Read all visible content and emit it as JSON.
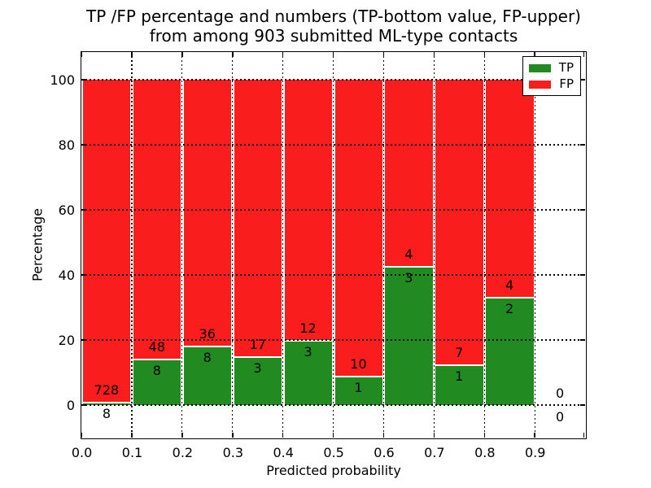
{
  "title": {
    "line1": "TP /FP percentage and numbers (TP-bottom value, FP-upper)",
    "line2": "from among 903 submitted ML-type contacts"
  },
  "axes": {
    "x_label": "Predicted probability",
    "y_label": "Percentage",
    "x_tick_labels": [
      "0.0",
      "0.1",
      "0.2",
      "0.3",
      "0.4",
      "0.5",
      "0.6",
      "0.7",
      "0.8",
      "0.9"
    ],
    "y_tick_labels": [
      "0",
      "20",
      "40",
      "60",
      "80",
      "100"
    ]
  },
  "legend": {
    "items": [
      {
        "label": "TP",
        "color": "#218a21"
      },
      {
        "label": "FP",
        "color": "#fa1d1d"
      }
    ]
  },
  "chart_data": {
    "type": "bar",
    "stacked": true,
    "normalized": "each 0.1-wide bin scaled to 100%, count labels drawn at TP/FP boundary",
    "title": "TP /FP percentage and numbers (TP-bottom value, FP-upper) from among 903 submitted ML-type contacts",
    "xlabel": "Predicted probability",
    "ylabel": "Percentage",
    "xlim": [
      0.0,
      1.0
    ],
    "ylim": [
      0,
      100
    ],
    "grid": "dotted black, both axes",
    "legend_position": "upper right",
    "total_submitted_contacts": 903,
    "bins": [
      "0.0-0.1",
      "0.1-0.2",
      "0.2-0.3",
      "0.3-0.4",
      "0.4-0.5",
      "0.5-0.6",
      "0.6-0.7",
      "0.7-0.8",
      "0.8-0.9",
      "0.9-1.0"
    ],
    "series": [
      {
        "name": "TP",
        "color": "#218a21",
        "values": [
          8,
          8,
          8,
          3,
          3,
          1,
          3,
          1,
          2,
          0
        ]
      },
      {
        "name": "FP",
        "color": "#fa1d1d",
        "values": [
          728,
          48,
          36,
          17,
          12,
          10,
          4,
          7,
          4,
          0
        ]
      }
    ],
    "tp_percent_of_bin": [
      1.09,
      14.29,
      18.18,
      15.0,
      20.0,
      9.09,
      42.86,
      12.5,
      33.33,
      0.0
    ]
  }
}
